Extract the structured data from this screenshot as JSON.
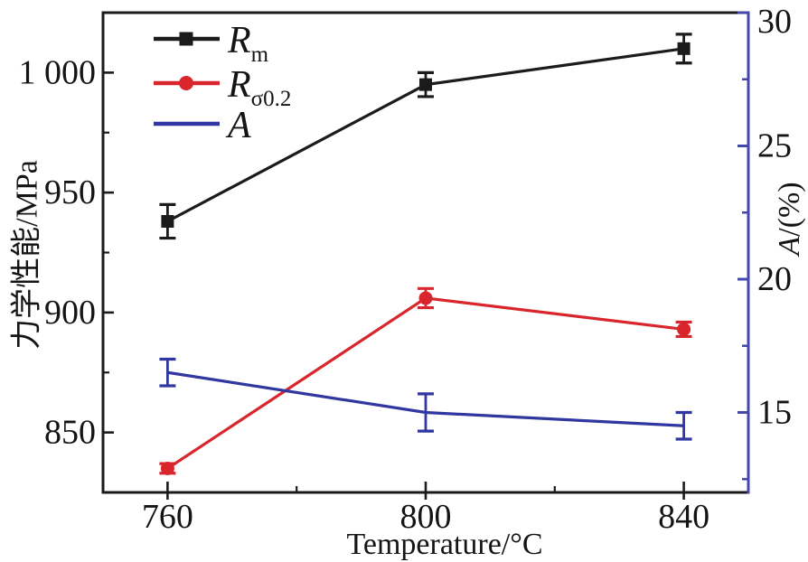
{
  "chart_data": {
    "type": "line",
    "title": "",
    "x": [
      760,
      800,
      840
    ],
    "xlabel": "Temperature/°C",
    "ylabel_left": "力学性能/MPa",
    "ylabel_right_main": "A",
    "ylabel_right_rest": "/(%)",
    "xlim": [
      750,
      850
    ],
    "ylim_left": [
      825,
      1025
    ],
    "ylim_right": [
      12,
      30
    ],
    "xticks": [
      "760",
      "800",
      "840"
    ],
    "xticks_values": [
      760,
      800,
      840
    ],
    "xminor_values": [
      780,
      820
    ],
    "yticks_left": [
      "850",
      "900",
      "950",
      "1 000"
    ],
    "yticks_left_values": [
      850,
      900,
      950,
      1000
    ],
    "yminor_left_values": [
      875,
      925,
      975
    ],
    "yticks_right": [
      "15",
      "20",
      "25",
      "30"
    ],
    "yticks_right_values": [
      15,
      20,
      25,
      30
    ],
    "yminor_right_values": [
      12.5,
      17.5,
      22.5,
      27.5
    ],
    "grid": false,
    "legend_position": "inside-top-left",
    "series": [
      {
        "id": "Rm",
        "label_main": "R",
        "label_sub": "m",
        "axis": "left",
        "color": "#1b1b1b",
        "marker": "square",
        "values": [
          938,
          995,
          1010
        ],
        "errors": [
          7,
          5,
          6
        ]
      },
      {
        "id": "Rsigma02",
        "label_main": "R",
        "label_sub": "σ0.2",
        "axis": "left",
        "color": "#d8262c",
        "marker": "circle",
        "values": [
          835,
          906,
          893
        ],
        "errors": [
          2,
          4,
          3
        ]
      },
      {
        "id": "A",
        "label_main": "A",
        "label_sub": "",
        "axis": "right",
        "color": "#3137a0",
        "marker": "none",
        "values": [
          16.5,
          15.0,
          14.5
        ],
        "errors": [
          0.5,
          0.7,
          0.5
        ]
      }
    ],
    "colors": {
      "axis_left": "#1b1b1b",
      "axis_right": "#4448aa",
      "text": "#141414",
      "background": "#ffffff"
    }
  }
}
